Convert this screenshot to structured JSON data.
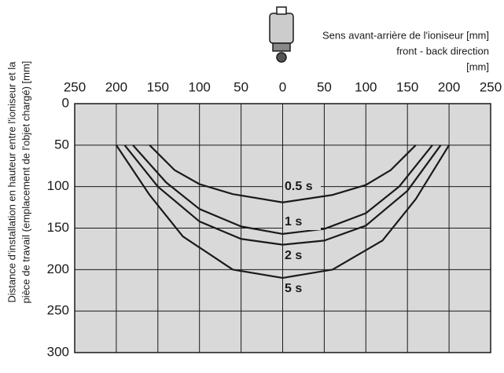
{
  "chart_data": {
    "type": "line",
    "axis_title": [
      "Sens avant-arrière de l'ioniseur [mm]",
      "front - back direction",
      "[mm]"
    ],
    "ylabel": [
      "Distance d'installation en hauteur entre l'ioniseur et la",
      "pièce de travail (emplacement de l'objet chargé) [mm]"
    ],
    "xlim": [
      -250,
      250
    ],
    "xticks": [
      {
        "value": -250,
        "label": "250"
      },
      {
        "value": -200,
        "label": "200"
      },
      {
        "value": -150,
        "label": "150"
      },
      {
        "value": -100,
        "label": "100"
      },
      {
        "value": -50,
        "label": "50"
      },
      0,
      50,
      100,
      150,
      200,
      250
    ],
    "ylim": [
      0,
      300
    ],
    "y_inverted": true,
    "yticks": [
      0,
      50,
      100,
      150,
      200,
      250,
      300
    ],
    "grid": true,
    "series": [
      {
        "name": "0.5 s",
        "color": "#1a1a1a",
        "x": [
          -160,
          -130,
          -100,
          -60,
          0,
          60,
          100,
          130,
          160
        ],
        "values": [
          50,
          80,
          97,
          109,
          119,
          110,
          98,
          80,
          50
        ]
      },
      {
        "name": "1 s",
        "color": "#1a1a1a",
        "x": [
          -180,
          -140,
          -100,
          -50,
          0,
          50,
          100,
          140,
          180
        ],
        "values": [
          50,
          95,
          127,
          148,
          157,
          151,
          132,
          100,
          50
        ]
      },
      {
        "name": "2 s",
        "color": "#1a1a1a",
        "x": [
          -190,
          -150,
          -100,
          -50,
          0,
          50,
          100,
          150,
          190
        ],
        "values": [
          50,
          100,
          142,
          163,
          170,
          165,
          147,
          105,
          50
        ]
      },
      {
        "name": "5 s",
        "color": "#1a1a1a",
        "x": [
          -200,
          -160,
          -120,
          -60,
          0,
          60,
          120,
          160,
          200
        ],
        "values": [
          50,
          110,
          160,
          200,
          210,
          200,
          165,
          115,
          50
        ]
      }
    ]
  }
}
